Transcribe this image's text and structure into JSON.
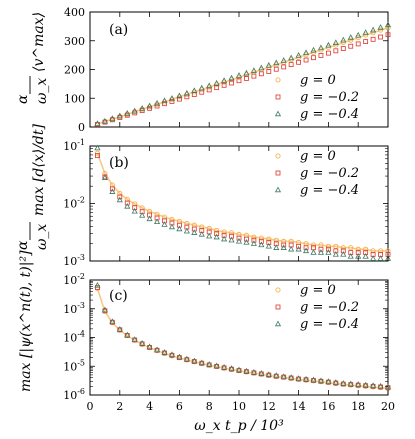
{
  "colors": {
    "g0": "#f2a93b",
    "g02": "#e0342a",
    "g04": "#3e7a62",
    "curve": "#f7c98a"
  },
  "chart_data": [
    {
      "type": "scatter",
      "panel_label": "(a)",
      "ylabel_num": "α",
      "ylabel_den": "ω_x",
      "ylabel_rest": "⟨v^max⟩",
      "xlim": [
        0,
        20
      ],
      "ylim": [
        0,
        400
      ],
      "yscale": "linear",
      "yticks": [
        0,
        100,
        200,
        300,
        400
      ],
      "ytick_labels": [
        "0",
        "100",
        "200",
        "300",
        "400"
      ],
      "legend_position": "bottom-right",
      "series": [
        {
          "name": "g = 0",
          "marker": "circle",
          "color": "g0",
          "x": [
            0.5,
            1,
            1.5,
            2,
            2.5,
            3,
            3.5,
            4,
            4.5,
            5,
            5.5,
            6,
            6.5,
            7,
            7.5,
            8,
            8.5,
            9,
            9.5,
            10,
            10.5,
            11,
            11.5,
            12,
            12.5,
            13,
            13.5,
            14,
            14.5,
            15,
            15.5,
            16,
            16.5,
            17,
            17.5,
            18,
            18.5,
            19,
            19.5,
            20
          ],
          "y": [
            10,
            19,
            27,
            36,
            44,
            53,
            62,
            70,
            79,
            87,
            96,
            105,
            113,
            122,
            130,
            139,
            148,
            156,
            165,
            173,
            182,
            191,
            199,
            208,
            216,
            225,
            234,
            242,
            251,
            259,
            268,
            277,
            285,
            294,
            302,
            311,
            320,
            328,
            337,
            345
          ]
        },
        {
          "name": "g = −0.2",
          "marker": "square",
          "color": "g02",
          "x": [
            0.5,
            1,
            1.5,
            2,
            2.5,
            3,
            3.5,
            4,
            4.5,
            5,
            5.5,
            6,
            6.5,
            7,
            7.5,
            8,
            8.5,
            9,
            9.5,
            10,
            10.5,
            11,
            11.5,
            12,
            12.5,
            13,
            13.5,
            14,
            14.5,
            15,
            15.5,
            16,
            16.5,
            17,
            17.5,
            18,
            18.5,
            19,
            19.5,
            20
          ],
          "y": [
            9,
            17,
            25,
            33,
            41,
            49,
            57,
            65,
            73,
            81,
            89,
            97,
            105,
            113,
            121,
            129,
            137,
            145,
            153,
            161,
            169,
            177,
            185,
            193,
            201,
            209,
            217,
            225,
            233,
            241,
            249,
            257,
            265,
            273,
            281,
            289,
            297,
            305,
            313,
            321
          ]
        },
        {
          "name": "g = −0.4",
          "marker": "triangle",
          "color": "g04",
          "x": [
            0.5,
            1,
            1.5,
            2,
            2.5,
            3,
            3.5,
            4,
            4.5,
            5,
            5.5,
            6,
            6.5,
            7,
            7.5,
            8,
            8.5,
            9,
            9.5,
            10,
            10.5,
            11,
            11.5,
            12,
            12.5,
            13,
            13.5,
            14,
            14.5,
            15,
            15.5,
            16,
            16.5,
            17,
            17.5,
            18,
            18.5,
            19,
            19.5,
            20
          ],
          "y": [
            11,
            20,
            29,
            38,
            47,
            55,
            64,
            73,
            82,
            91,
            99,
            108,
            117,
            126,
            135,
            143,
            152,
            161,
            170,
            179,
            187,
            196,
            205,
            214,
            223,
            231,
            240,
            249,
            258,
            267,
            275,
            284,
            293,
            302,
            311,
            319,
            328,
            337,
            346,
            355
          ]
        }
      ]
    },
    {
      "type": "scatter",
      "panel_label": "(b)",
      "ylabel_num": "α",
      "ylabel_den": "ω_x",
      "ylabel_rest": "max [d⟨x⟩/dt]",
      "xlim": [
        0,
        20
      ],
      "ylim": [
        0.001,
        0.1
      ],
      "yscale": "log",
      "yticks": [
        0.001,
        0.01,
        0.1
      ],
      "ytick_labels": [
        "10^-3",
        "10^-2",
        "10^-1"
      ],
      "legend_position": "top-right",
      "series": [
        {
          "name": "g = 0",
          "marker": "circle",
          "color": "g0",
          "x": [
            0.5,
            1,
            1.5,
            2,
            2.5,
            3,
            3.5,
            4,
            4.5,
            5,
            5.5,
            6,
            6.5,
            7,
            7.5,
            8,
            8.5,
            9,
            9.5,
            10,
            10.5,
            11,
            11.5,
            12,
            12.5,
            13,
            13.5,
            14,
            14.5,
            15,
            15.5,
            16,
            16.5,
            17,
            17.5,
            18,
            18.5,
            19,
            19.5,
            20
          ],
          "y": [
            0.075,
            0.033,
            0.021,
            0.015,
            0.0118,
            0.0098,
            0.0084,
            0.0073,
            0.0065,
            0.0058,
            0.0053,
            0.0049,
            0.0045,
            0.0042,
            0.0039,
            0.0037,
            0.0034,
            0.0032,
            0.0031,
            0.0029,
            0.0028,
            0.0026,
            0.0025,
            0.0024,
            0.0023,
            0.0022,
            0.0022,
            0.0021,
            0.002,
            0.0019,
            0.0019,
            0.0018,
            0.0018,
            0.0017,
            0.0017,
            0.0016,
            0.0016,
            0.0015,
            0.0015,
            0.0015
          ]
        },
        {
          "name": "g = −0.2",
          "marker": "square",
          "color": "g02",
          "x": [
            0.5,
            1,
            1.5,
            2,
            2.5,
            3,
            3.5,
            4,
            4.5,
            5,
            5.5,
            6,
            6.5,
            7,
            7.5,
            8,
            8.5,
            9,
            9.5,
            10,
            10.5,
            11,
            11.5,
            12,
            12.5,
            13,
            13.5,
            14,
            14.5,
            15,
            15.5,
            16,
            16.5,
            17,
            17.5,
            18,
            18.5,
            19,
            19.5,
            20
          ],
          "y": [
            0.068,
            0.029,
            0.018,
            0.013,
            0.0102,
            0.0085,
            0.0072,
            0.0063,
            0.0056,
            0.005,
            0.0046,
            0.0042,
            0.0039,
            0.0036,
            0.0034,
            0.0032,
            0.003,
            0.0028,
            0.0027,
            0.0025,
            0.0024,
            0.0023,
            0.0022,
            0.0021,
            0.002,
            0.0019,
            0.0019,
            0.0018,
            0.0017,
            0.0017,
            0.0016,
            0.0016,
            0.0015,
            0.0015,
            0.0014,
            0.0014,
            0.0014,
            0.0013,
            0.0013,
            0.0013
          ]
        },
        {
          "name": "g = −0.4",
          "marker": "triangle",
          "color": "g04",
          "x": [
            0.5,
            1,
            1.5,
            2,
            2.5,
            3,
            3.5,
            4,
            4.5,
            5,
            5.5,
            6,
            6.5,
            7,
            7.5,
            8,
            8.5,
            9,
            9.5,
            10,
            10.5,
            11,
            11.5,
            12,
            12.5,
            13,
            13.5,
            14,
            14.5,
            15,
            15.5,
            16,
            16.5,
            17,
            17.5,
            18,
            18.5,
            19,
            19.5,
            20
          ],
          "y": [
            0.092,
            0.028,
            0.016,
            0.0115,
            0.0089,
            0.0073,
            0.0062,
            0.0054,
            0.0048,
            0.0043,
            0.0039,
            0.0036,
            0.0033,
            0.0031,
            0.0029,
            0.0027,
            0.0026,
            0.0024,
            0.0023,
            0.0022,
            0.0021,
            0.002,
            0.0019,
            0.0018,
            0.0017,
            0.0017,
            0.0016,
            0.0016,
            0.0015,
            0.0014,
            0.0014,
            0.0014,
            0.0013,
            0.0013,
            0.0012,
            0.0012,
            0.0012,
            0.0011,
            0.0011,
            0.0011
          ]
        }
      ]
    },
    {
      "type": "scatter",
      "panel_label": "(c)",
      "ylabel_rest": "max [|ψ(x^n(t), t)|²]",
      "xlabel": "ω_x t_p / 10³",
      "xlim": [
        0,
        20
      ],
      "ylim": [
        1e-06,
        0.01
      ],
      "yscale": "log",
      "xticks": [
        0,
        2,
        4,
        6,
        8,
        10,
        12,
        14,
        16,
        18,
        20
      ],
      "xtick_labels": [
        "0",
        "2",
        "4",
        "6",
        "8",
        "10",
        "12",
        "14",
        "16",
        "18",
        "20"
      ],
      "yticks": [
        1e-06,
        1e-05,
        0.0001,
        0.001,
        0.01
      ],
      "ytick_labels": [
        "10^-6",
        "10^-5",
        "10^-4",
        "10^-3",
        "10^-2"
      ],
      "legend_position": "top-right",
      "series": [
        {
          "name": "g = 0",
          "marker": "circle",
          "color": "g0",
          "x": [
            0.5,
            1,
            1.5,
            2,
            2.5,
            3,
            3.5,
            4,
            4.5,
            5,
            5.5,
            6,
            6.5,
            7,
            7.5,
            8,
            8.5,
            9,
            9.5,
            10,
            10.5,
            11,
            11.5,
            12,
            12.5,
            13,
            13.5,
            14,
            14.5,
            15,
            15.5,
            16,
            16.5,
            17,
            17.5,
            18,
            18.5,
            19,
            19.5,
            20
          ],
          "y": [
            0.005,
            0.0008,
            0.00033,
            0.00018,
            0.000115,
            8e-05,
            5.8e-05,
            4.4e-05,
            3.5e-05,
            2.8e-05,
            2.3e-05,
            1.95e-05,
            1.66e-05,
            1.43e-05,
            1.24e-05,
            1.09e-05,
            9.7e-06,
            8.6e-06,
            7.7e-06,
            7e-06,
            6.3e-06,
            5.8e-06,
            5.3e-06,
            4.8e-06,
            4.4e-06,
            4.1e-06,
            3.8e-06,
            3.5e-06,
            3.3e-06,
            3.1e-06,
            2.9e-06,
            2.7e-06,
            2.5e-06,
            2.4e-06,
            2.2e-06,
            2.1e-06,
            2e-06,
            1.9e-06,
            1.8e-06,
            1.7e-06
          ]
        },
        {
          "name": "g = −0.2",
          "marker": "square",
          "color": "g02",
          "x": [
            0.5,
            1,
            1.5,
            2,
            2.5,
            3,
            3.5,
            4,
            4.5,
            5,
            5.5,
            6,
            6.5,
            7,
            7.5,
            8,
            8.5,
            9,
            9.5,
            10,
            10.5,
            11,
            11.5,
            12,
            12.5,
            13,
            13.5,
            14,
            14.5,
            15,
            15.5,
            16,
            16.5,
            17,
            17.5,
            18,
            18.5,
            19,
            19.5,
            20
          ],
          "y": [
            0.0055,
            0.00085,
            0.00034,
            0.000185,
            0.000118,
            8.2e-05,
            6e-05,
            4.5e-05,
            3.6e-05,
            2.9e-05,
            2.4e-05,
            2e-05,
            1.7e-05,
            1.46e-05,
            1.27e-05,
            1.11e-05,
            9.9e-06,
            8.8e-06,
            7.9e-06,
            7.1e-06,
            6.5e-06,
            5.9e-06,
            5.4e-06,
            4.9e-06,
            4.5e-06,
            4.2e-06,
            3.9e-06,
            3.6e-06,
            3.4e-06,
            3.2e-06,
            3e-06,
            2.8e-06,
            2.6e-06,
            2.4e-06,
            2.3e-06,
            2.2e-06,
            2.1e-06,
            2e-06,
            1.9e-06,
            1.8e-06
          ]
        },
        {
          "name": "g = −0.4",
          "marker": "triangle",
          "color": "g04",
          "x": [
            0.5,
            1,
            1.5,
            2,
            2.5,
            3,
            3.5,
            4,
            4.5,
            5,
            5.5,
            6,
            6.5,
            7,
            7.5,
            8,
            8.5,
            9,
            9.5,
            10,
            10.5,
            11,
            11.5,
            12,
            12.5,
            13,
            13.5,
            14,
            14.5,
            15,
            15.5,
            16,
            16.5,
            17,
            17.5,
            18,
            18.5,
            19,
            19.5,
            20
          ],
          "y": [
            0.0065,
            0.0009,
            0.00035,
            0.00019,
            0.000121,
            8.4e-05,
            6.2e-05,
            4.7e-05,
            3.7e-05,
            3e-05,
            2.5e-05,
            2.08e-05,
            1.76e-05,
            1.51e-05,
            1.31e-05,
            1.15e-05,
            1.02e-05,
            9.1e-06,
            8.2e-06,
            7.4e-06,
            6.7e-06,
            6.1e-06,
            5.6e-06,
            5.1e-06,
            4.7e-06,
            4.3e-06,
            4e-06,
            3.7e-06,
            3.5e-06,
            3.3e-06,
            3.1e-06,
            2.9e-06,
            2.7e-06,
            2.5e-06,
            2.4e-06,
            2.3e-06,
            2.2e-06,
            2.1e-06,
            2e-06,
            1.9e-06
          ]
        }
      ]
    }
  ]
}
